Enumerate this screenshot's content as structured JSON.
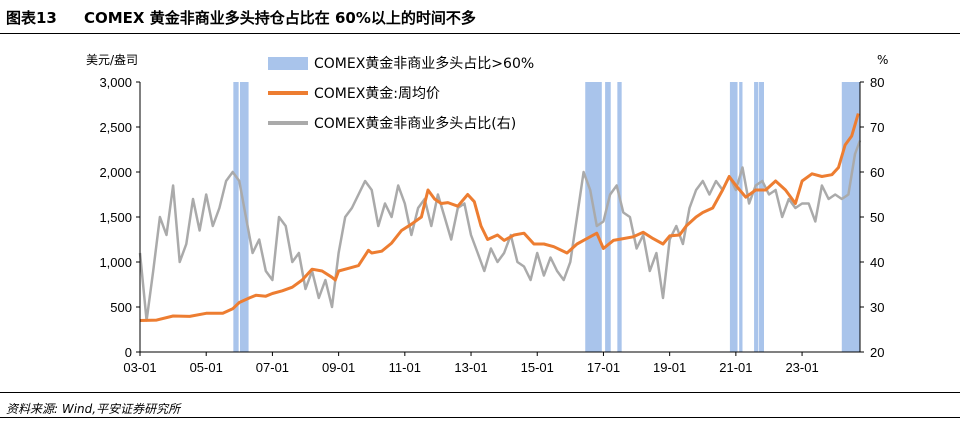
{
  "header": {
    "figure_label": "图表13",
    "title": "COMEX 黄金非商业多头持仓占比在 60%以上的时间不多"
  },
  "footer": {
    "source": "资料来源: Wind,平安证券研究所"
  },
  "colors": {
    "gold_price": "#ED7D31",
    "long_ratio": "#AAAAAA",
    "shade": "#A9C4EB"
  },
  "chart_data": {
    "type": "line",
    "left_axis": {
      "unit": "美元/盎司",
      "ylim": [
        0,
        3000
      ],
      "ticks": [
        "0",
        "500",
        "1,000",
        "1,500",
        "2,000",
        "2,500",
        "3,000"
      ]
    },
    "right_axis": {
      "unit": "%",
      "ylim": [
        20,
        80
      ],
      "ticks": [
        "20",
        "30",
        "40",
        "50",
        "60",
        "70",
        "80"
      ]
    },
    "x_ticks": [
      "03-01",
      "05-01",
      "07-01",
      "09-01",
      "11-01",
      "13-01",
      "15-01",
      "17-01",
      "19-01",
      "21-01",
      "23-01"
    ],
    "x_range": [
      2003.0,
      2024.75
    ],
    "legend": [
      {
        "label": "COMEX黄金非商业多头占比>60%",
        "kind": "bar"
      },
      {
        "label": "COMEX黄金:周均价",
        "kind": "line-orange"
      },
      {
        "label": "COMEX黄金非商业多头占比(右)",
        "kind": "line-gray"
      }
    ],
    "series": [
      {
        "name": "COMEX黄金:周均价",
        "axis": "left",
        "x": [
          2003.0,
          2003.5,
          2004.0,
          2004.5,
          2005.0,
          2005.5,
          2005.8,
          2006.0,
          2006.3,
          2006.5,
          2006.8,
          2007.0,
          2007.3,
          2007.6,
          2007.9,
          2008.2,
          2008.5,
          2008.8,
          2008.9,
          2009.0,
          2009.3,
          2009.6,
          2009.9,
          2010.0,
          2010.3,
          2010.6,
          2010.9,
          2011.2,
          2011.5,
          2011.7,
          2011.9,
          2012.1,
          2012.3,
          2012.6,
          2012.9,
          2013.1,
          2013.3,
          2013.5,
          2013.8,
          2014.0,
          2014.3,
          2014.6,
          2014.9,
          2015.2,
          2015.5,
          2015.9,
          2016.2,
          2016.5,
          2016.8,
          2017.0,
          2017.3,
          2017.6,
          2017.9,
          2018.2,
          2018.5,
          2018.8,
          2019.0,
          2019.3,
          2019.5,
          2019.8,
          2020.0,
          2020.3,
          2020.6,
          2020.8,
          2021.0,
          2021.3,
          2021.6,
          2021.9,
          2022.2,
          2022.5,
          2022.8,
          2023.0,
          2023.3,
          2023.6,
          2023.9,
          2024.1,
          2024.3,
          2024.5,
          2024.7
        ],
        "values": [
          350,
          355,
          400,
          395,
          430,
          430,
          480,
          550,
          600,
          630,
          620,
          650,
          680,
          720,
          800,
          920,
          900,
          830,
          800,
          900,
          930,
          960,
          1130,
          1100,
          1120,
          1210,
          1350,
          1420,
          1500,
          1800,
          1700,
          1650,
          1660,
          1620,
          1750,
          1670,
          1400,
          1250,
          1300,
          1240,
          1300,
          1320,
          1200,
          1200,
          1170,
          1100,
          1200,
          1260,
          1320,
          1150,
          1240,
          1260,
          1280,
          1330,
          1260,
          1200,
          1290,
          1300,
          1400,
          1500,
          1550,
          1600,
          1800,
          1950,
          1850,
          1720,
          1800,
          1800,
          1900,
          1800,
          1650,
          1900,
          1980,
          1950,
          1970,
          2050,
          2300,
          2400,
          2650
        ]
      },
      {
        "name": "COMEX黄金非商业多头占比(右)",
        "axis": "right",
        "x": [
          2003.0,
          2003.2,
          2003.4,
          2003.6,
          2003.8,
          2004.0,
          2004.2,
          2004.4,
          2004.6,
          2004.8,
          2005.0,
          2005.2,
          2005.4,
          2005.6,
          2005.8,
          2006.0,
          2006.2,
          2006.4,
          2006.6,
          2006.8,
          2007.0,
          2007.2,
          2007.4,
          2007.6,
          2007.8,
          2008.0,
          2008.2,
          2008.4,
          2008.6,
          2008.8,
          2009.0,
          2009.2,
          2009.4,
          2009.6,
          2009.8,
          2010.0,
          2010.2,
          2010.4,
          2010.6,
          2010.8,
          2011.0,
          2011.2,
          2011.4,
          2011.6,
          2011.8,
          2012.0,
          2012.2,
          2012.4,
          2012.6,
          2012.8,
          2013.0,
          2013.2,
          2013.4,
          2013.6,
          2013.8,
          2014.0,
          2014.2,
          2014.4,
          2014.6,
          2014.8,
          2015.0,
          2015.2,
          2015.4,
          2015.6,
          2015.8,
          2016.0,
          2016.2,
          2016.4,
          2016.6,
          2016.8,
          2017.0,
          2017.2,
          2017.4,
          2017.6,
          2017.8,
          2018.0,
          2018.2,
          2018.4,
          2018.6,
          2018.8,
          2019.0,
          2019.2,
          2019.4,
          2019.6,
          2019.8,
          2020.0,
          2020.2,
          2020.4,
          2020.6,
          2020.8,
          2021.0,
          2021.2,
          2021.4,
          2021.6,
          2021.8,
          2022.0,
          2022.2,
          2022.4,
          2022.6,
          2022.8,
          2023.0,
          2023.2,
          2023.4,
          2023.6,
          2023.8,
          2024.0,
          2024.2,
          2024.4,
          2024.6,
          2024.75
        ],
        "values": [
          42,
          27,
          38,
          50,
          46,
          57,
          40,
          44,
          54,
          47,
          55,
          48,
          52,
          58,
          60,
          58,
          50,
          42,
          45,
          38,
          36,
          50,
          48,
          40,
          42,
          34,
          38,
          32,
          36,
          30,
          42,
          50,
          52,
          55,
          58,
          56,
          48,
          53,
          50,
          57,
          53,
          46,
          52,
          54,
          48,
          55,
          50,
          45,
          52,
          53,
          46,
          42,
          38,
          43,
          40,
          42,
          46,
          40,
          39,
          36,
          42,
          37,
          41,
          38,
          36,
          40,
          50,
          60,
          56,
          48,
          49,
          55,
          57,
          51,
          50,
          43,
          46,
          38,
          42,
          32,
          45,
          48,
          44,
          52,
          56,
          58,
          55,
          58,
          56,
          59,
          56,
          61,
          53,
          57,
          58,
          55,
          56,
          50,
          54,
          52,
          53,
          53,
          49,
          57,
          54,
          55,
          54,
          55,
          64,
          67
        ]
      }
    ],
    "shaded_periods": [
      [
        2005.82,
        2005.98
      ],
      [
        2006.02,
        2006.28
      ],
      [
        2016.45,
        2016.95
      ],
      [
        2017.05,
        2017.22
      ],
      [
        2017.42,
        2017.55
      ],
      [
        2020.82,
        2021.05
      ],
      [
        2021.1,
        2021.2
      ],
      [
        2021.55,
        2021.68
      ],
      [
        2021.7,
        2021.85
      ],
      [
        2024.2,
        2024.75
      ]
    ]
  }
}
